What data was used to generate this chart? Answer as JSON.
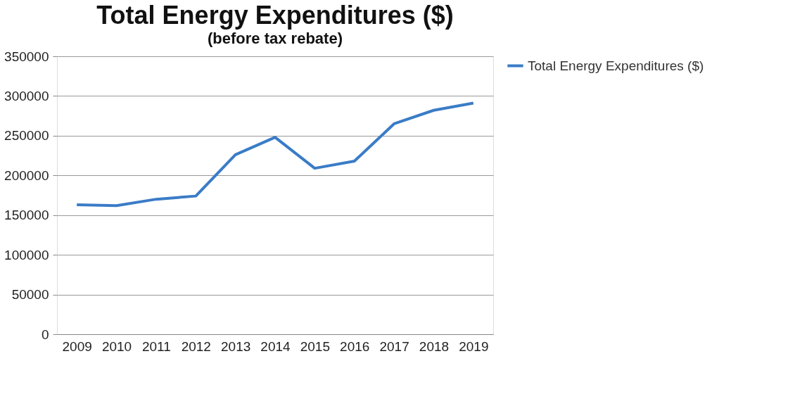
{
  "chart_data": {
    "type": "line",
    "title": "Total Energy Expenditures ($)",
    "subtitle": "(before tax rebate)",
    "categories": [
      "2009",
      "2010",
      "2011",
      "2012",
      "2013",
      "2014",
      "2015",
      "2016",
      "2017",
      "2018",
      "2019"
    ],
    "series": [
      {
        "name": "Total Energy Expenditures ($)",
        "color": "#3a7cc7",
        "values": [
          163000,
          162000,
          170000,
          174000,
          226000,
          248000,
          209000,
          218000,
          265000,
          282000,
          291000
        ]
      }
    ],
    "ylim": [
      0,
      350000
    ],
    "yticks": [
      0,
      50000,
      100000,
      150000,
      200000,
      250000,
      300000,
      350000
    ],
    "grid": "y",
    "legend": "right",
    "marker": "none",
    "line_style": "solid"
  }
}
